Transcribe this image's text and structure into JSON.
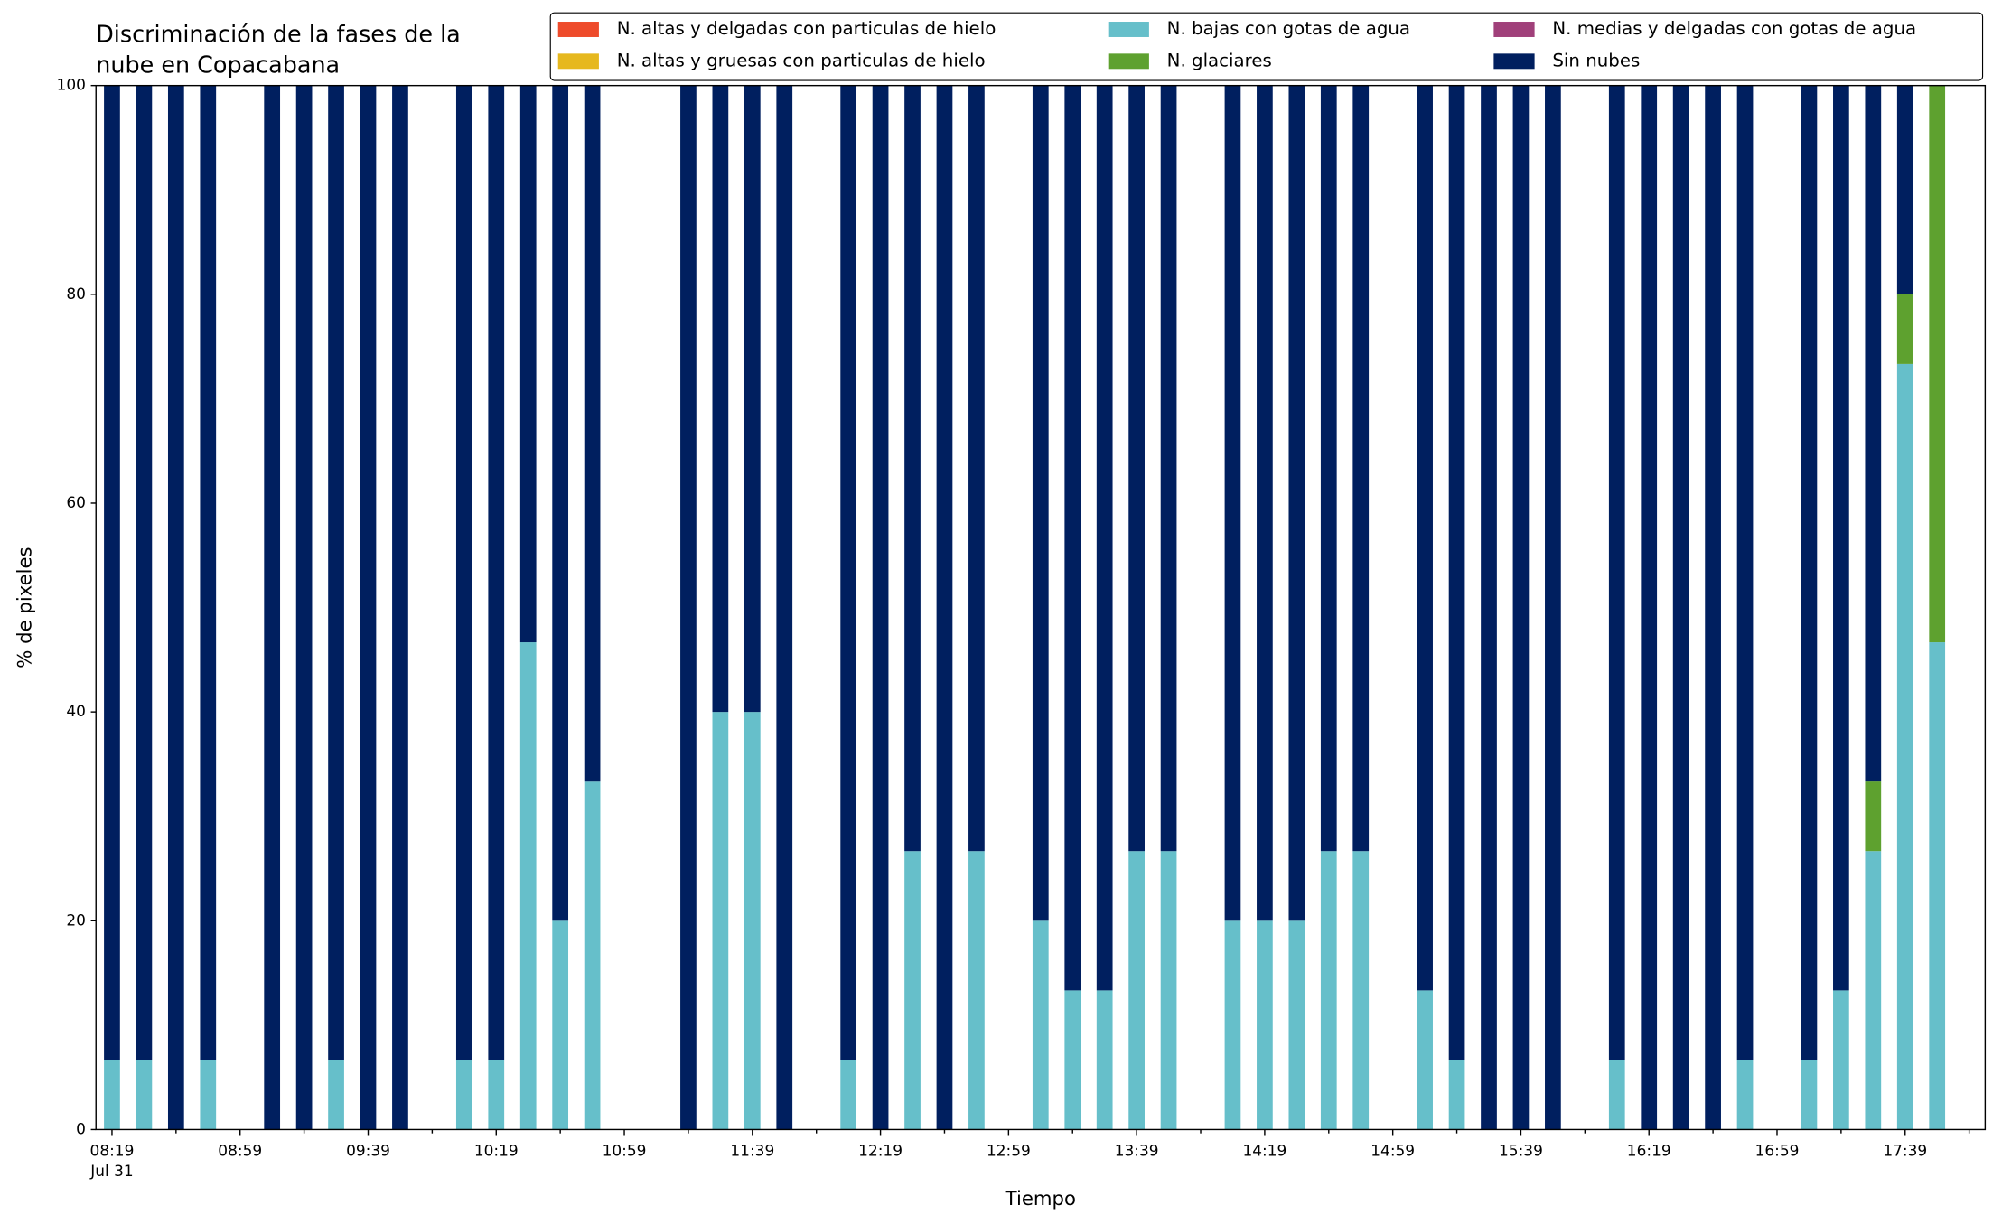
{
  "chart_data": {
    "type": "stacked_bar",
    "title": [
      "Discriminación de la fases de la",
      "nube en Copacabana"
    ],
    "xlabel": "Tiempo",
    "ylabel": "% de pixeles",
    "x": [
      "08:19",
      "08:29",
      "08:39",
      "08:49",
      "09:09",
      "09:19",
      "09:29",
      "09:39",
      "09:49",
      "10:09",
      "10:19",
      "10:29",
      "10:39",
      "10:49",
      "11:19",
      "11:29",
      "11:39",
      "11:49",
      "12:09",
      "12:19",
      "12:29",
      "12:39",
      "12:49",
      "13:09",
      "13:19",
      "13:29",
      "13:39",
      "13:49",
      "14:09",
      "14:19",
      "14:29",
      "14:39",
      "14:49",
      "15:09",
      "15:19",
      "15:29",
      "15:39",
      "15:49",
      "16:09",
      "16:19",
      "16:29",
      "16:39",
      "16:49",
      "17:09",
      "17:19",
      "17:29",
      "17:39",
      "17:49"
    ],
    "xlim": [
      "08:14",
      "18:04"
    ],
    "xticks": [
      "08:19",
      "08:59",
      "09:39",
      "10:19",
      "10:59",
      "11:39",
      "12:19",
      "12:59",
      "13:39",
      "14:19",
      "14:59",
      "15:39",
      "16:19",
      "16:59",
      "17:39"
    ],
    "xminorticks": [
      "08:39",
      "09:19",
      "09:59",
      "10:39",
      "11:19",
      "11:59",
      "12:39",
      "13:19",
      "13:59",
      "14:39",
      "15:19",
      "15:59",
      "16:39",
      "17:19",
      "17:59"
    ],
    "xtick_date": "Jul 31",
    "ylim": [
      0,
      100
    ],
    "yticks": [
      0,
      20,
      40,
      60,
      80,
      100
    ],
    "legend": "top-right",
    "series": [
      {
        "name": "N. altas y delgadas con particulas de hielo",
        "color": "#ee4b2b",
        "values": [
          0,
          0,
          0,
          0,
          0,
          0,
          0,
          0,
          0,
          0,
          0,
          0,
          0,
          0,
          0,
          0,
          0,
          0,
          0,
          0,
          0,
          0,
          0,
          0,
          0,
          0,
          0,
          0,
          0,
          0,
          0,
          0,
          0,
          0,
          0,
          0,
          0,
          0,
          0,
          0,
          0,
          0,
          0,
          0,
          0,
          0,
          0,
          0
        ]
      },
      {
        "name": "N. altas y gruesas con particulas de hielo",
        "color": "#e6b81e",
        "values": [
          0,
          0,
          0,
          0,
          0,
          0,
          0,
          0,
          0,
          0,
          0,
          0,
          0,
          0,
          0,
          0,
          0,
          0,
          0,
          0,
          0,
          0,
          0,
          0,
          0,
          0,
          0,
          0,
          0,
          0,
          0,
          0,
          0,
          0,
          0,
          0,
          0,
          0,
          0,
          0,
          0,
          0,
          0,
          0,
          0,
          0,
          0,
          0
        ]
      },
      {
        "name": "N. bajas con gotas de agua",
        "color": "#66bfca",
        "values": [
          6.67,
          6.67,
          0,
          6.67,
          0,
          0,
          6.67,
          0,
          0,
          6.67,
          6.67,
          46.67,
          20,
          33.33,
          0,
          40,
          40,
          0,
          6.67,
          0,
          26.67,
          0,
          26.67,
          20,
          13.33,
          13.33,
          26.67,
          26.67,
          20,
          20,
          20,
          26.67,
          26.67,
          13.33,
          6.67,
          0,
          0,
          0,
          6.67,
          0,
          0,
          0,
          6.67,
          6.67,
          13.33,
          26.67,
          73.33,
          46.67
        ]
      },
      {
        "name": "N. glaciares",
        "color": "#5ea12f",
        "values": [
          0,
          0,
          0,
          0,
          0,
          0,
          0,
          0,
          0,
          0,
          0,
          0,
          0,
          0,
          0,
          0,
          0,
          0,
          0,
          0,
          0,
          0,
          0,
          0,
          0,
          0,
          0,
          0,
          0,
          0,
          0,
          0,
          0,
          0,
          0,
          0,
          0,
          0,
          0,
          0,
          0,
          0,
          0,
          0,
          0,
          6.67,
          6.67,
          53.33
        ]
      },
      {
        "name": "N. medias y delgadas con gotas de agua",
        "color": "#a0407a",
        "values": [
          0,
          0,
          0,
          0,
          0,
          0,
          0,
          0,
          0,
          0,
          0,
          0,
          0,
          0,
          0,
          0,
          0,
          0,
          0,
          0,
          0,
          0,
          0,
          0,
          0,
          0,
          0,
          0,
          0,
          0,
          0,
          0,
          0,
          0,
          0,
          0,
          0,
          0,
          0,
          0,
          0,
          0,
          0,
          0,
          0,
          0,
          0,
          0
        ]
      },
      {
        "name": "Sin nubes",
        "color": "#001f5f",
        "values": [
          93.33,
          93.33,
          100,
          93.33,
          100,
          100,
          93.33,
          100,
          100,
          93.33,
          93.33,
          53.33,
          80,
          66.67,
          100,
          60,
          60,
          100,
          93.33,
          100,
          73.33,
          100,
          73.33,
          80,
          86.67,
          86.67,
          73.33,
          73.33,
          80,
          80,
          80,
          73.33,
          73.33,
          86.67,
          93.33,
          100,
          100,
          100,
          93.33,
          100,
          100,
          100,
          93.33,
          93.33,
          86.67,
          66.67,
          20,
          0
        ]
      }
    ]
  }
}
